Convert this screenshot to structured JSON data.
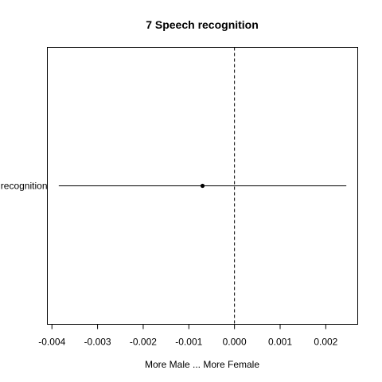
{
  "chart_data": {
    "type": "scatter",
    "title": "7 Speech recognition",
    "xlabel": "More Male ... More Female",
    "ylabel": "",
    "xlim": [
      -0.0041,
      0.0027
    ],
    "xticks": [
      -0.004,
      -0.003,
      -0.002,
      -0.001,
      0.0,
      0.001,
      0.002
    ],
    "xtick_labels": [
      "-0.004",
      "-0.003",
      "-0.002",
      "-0.001",
      "0.000",
      "0.001",
      "0.002"
    ],
    "reference_line": {
      "x": 0.0,
      "style": "dashed"
    },
    "grid": false,
    "legend": "none",
    "categories": [
      "Speech recognition"
    ],
    "points": [
      {
        "category": "Speech recognition",
        "estimate": -0.0007,
        "ci_low": -0.00385,
        "ci_high": 0.00245
      }
    ],
    "colors": {
      "line": "#000000",
      "point": "#000000",
      "frame": "#000000"
    }
  }
}
